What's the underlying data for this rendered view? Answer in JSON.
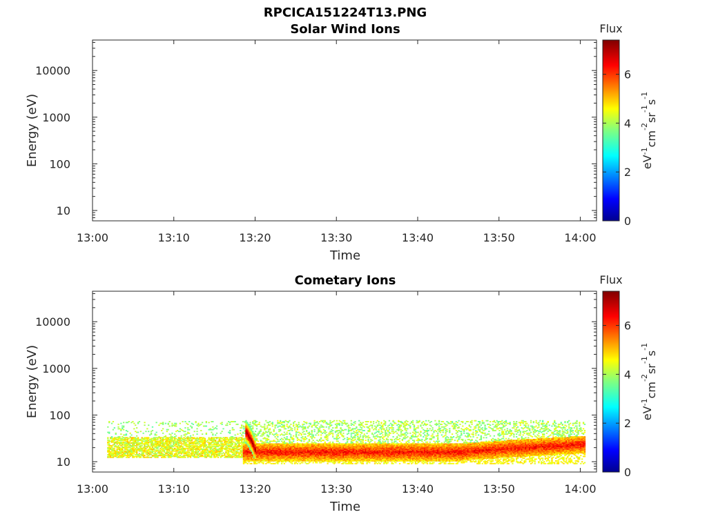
{
  "figure_title": "RPCICA151224T13.PNG",
  "colorbar": {
    "label": "Flux",
    "unit_base": "eV",
    "unit_parts": [
      "-1",
      "cm",
      "-2",
      "sr",
      "-1",
      "s",
      "-1"
    ],
    "ticks": [
      "0",
      "2",
      "4",
      "6"
    ],
    "range": [
      0,
      7.4
    ],
    "colormap": "jet"
  },
  "chart_data": [
    {
      "type": "heatmap",
      "title": "Solar Wind Ions",
      "xlabel": "Time",
      "ylabel": "Energy (eV)",
      "x_ticks": [
        "13:00",
        "13:10",
        "13:20",
        "13:30",
        "13:40",
        "13:50",
        "14:00"
      ],
      "y_ticks": [
        "10",
        "100",
        "1000",
        "10000"
      ],
      "y_scale": "log",
      "xlim": [
        "13:00",
        "14:02"
      ],
      "ylim": [
        6,
        45000
      ],
      "grid": false,
      "bands": []
    },
    {
      "type": "heatmap",
      "title": "Cometary Ions",
      "xlabel": "Time",
      "ylabel": "Energy (eV)",
      "x_ticks": [
        "13:00",
        "13:10",
        "13:20",
        "13:30",
        "13:40",
        "13:50",
        "14:00"
      ],
      "y_ticks": [
        "10",
        "100",
        "1000",
        "10000"
      ],
      "y_scale": "log",
      "xlim": [
        "13:00",
        "14:02"
      ],
      "ylim": [
        6,
        45000
      ],
      "grid": false,
      "bands": [
        {
          "t_start": 1.8,
          "t_end": 18.6,
          "e_low": 15,
          "e_high": 35,
          "peak_flux": 4.9,
          "noise_top": 75
        },
        {
          "t_start": 18.5,
          "t_end": 60.5,
          "e_low": 11,
          "e_high": 80,
          "peak_flux": 6.3,
          "noise_top": 80
        },
        {
          "t_start": 18.8,
          "t_end": 20.0,
          "e_low": 14,
          "e_high": 55,
          "peak_flux": 7.2,
          "noise_top": 80
        }
      ]
    }
  ]
}
